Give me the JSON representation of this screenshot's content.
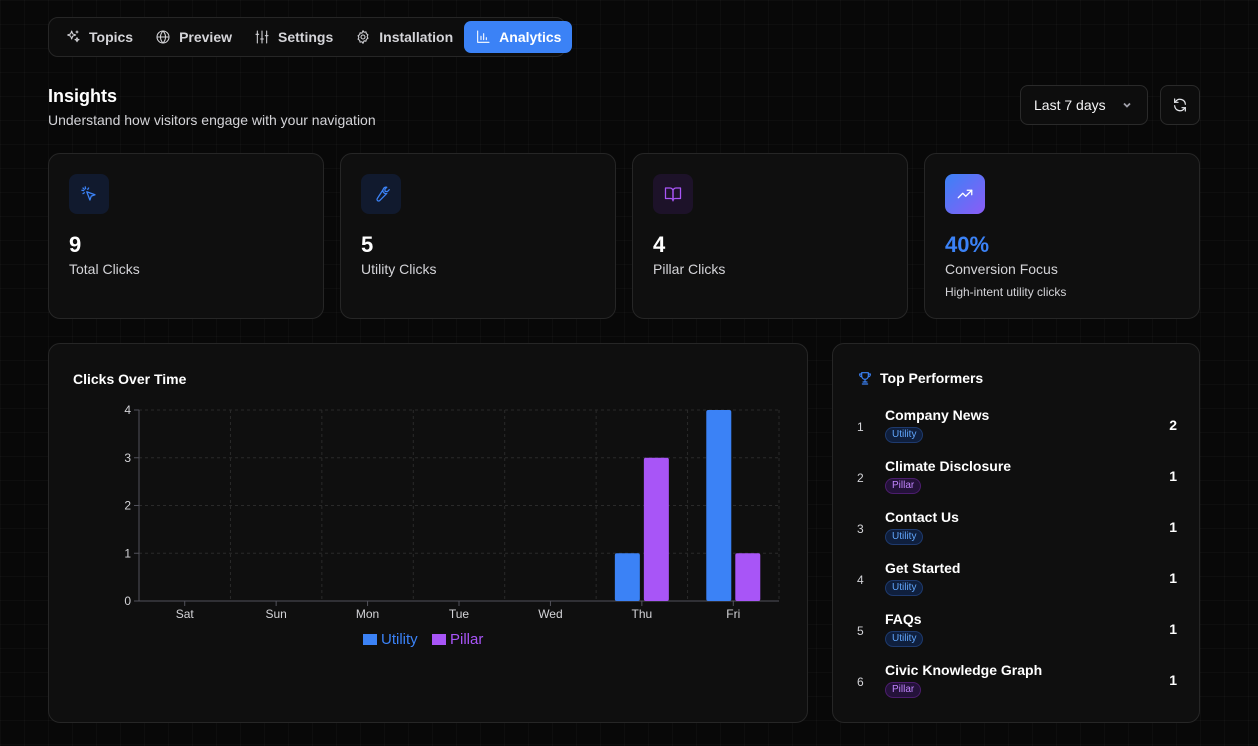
{
  "tabs": [
    {
      "label": "Topics",
      "icon": "sparkles-icon",
      "active": false
    },
    {
      "label": "Preview",
      "icon": "globe-icon",
      "active": false
    },
    {
      "label": "Settings",
      "icon": "sliders-icon",
      "active": false
    },
    {
      "label": "Installation",
      "icon": "gear-icon",
      "active": false
    },
    {
      "label": "Analytics",
      "icon": "bar-chart-icon",
      "active": true
    }
  ],
  "header": {
    "title": "Insights",
    "subtitle": "Understand how visitors engage with your navigation",
    "range_value": "Last 7 days"
  },
  "stats": [
    {
      "value": "9",
      "label": "Total Clicks",
      "icon": "cursor-click-icon",
      "color": "#3b82f6"
    },
    {
      "value": "5",
      "label": "Utility Clicks",
      "icon": "wrench-icon",
      "color": "#3b82f6"
    },
    {
      "value": "4",
      "label": "Pillar Clicks",
      "icon": "book-open-icon",
      "color": "#a855f7"
    },
    {
      "value": "40%",
      "label": "Conversion Focus",
      "note": "High-intent utility clicks",
      "icon": "trending-up-icon",
      "color": "#3b82f6"
    }
  ],
  "chart": {
    "title": "Clicks Over Time"
  },
  "chart_data": {
    "type": "bar",
    "title": "Clicks Over Time",
    "categories": [
      "Sat",
      "Sun",
      "Mon",
      "Tue",
      "Wed",
      "Thu",
      "Fri"
    ],
    "series": [
      {
        "name": "Utility",
        "color": "#3b82f6",
        "values": [
          0,
          0,
          0,
          0,
          0,
          1,
          4
        ]
      },
      {
        "name": "Pillar",
        "color": "#a855f7",
        "values": [
          0,
          0,
          0,
          0,
          0,
          3,
          1
        ]
      }
    ],
    "yticks": [
      "0",
      "1",
      "2",
      "3",
      "4"
    ],
    "ylim": [
      0,
      4
    ],
    "xlabel": "",
    "ylabel": "",
    "legend": "bottom-center",
    "grid": true
  },
  "performers": {
    "title": "Top Performers",
    "items": [
      {
        "rank": "1",
        "name": "Company News",
        "tag": "Utility",
        "count": "2"
      },
      {
        "rank": "2",
        "name": "Climate Disclosure",
        "tag": "Pillar",
        "count": "1"
      },
      {
        "rank": "3",
        "name": "Contact Us",
        "tag": "Utility",
        "count": "1"
      },
      {
        "rank": "4",
        "name": "Get Started",
        "tag": "Utility",
        "count": "1"
      },
      {
        "rank": "5",
        "name": "FAQs",
        "tag": "Utility",
        "count": "1"
      },
      {
        "rank": "6",
        "name": "Civic Knowledge Graph",
        "tag": "Pillar",
        "count": "1"
      }
    ]
  }
}
